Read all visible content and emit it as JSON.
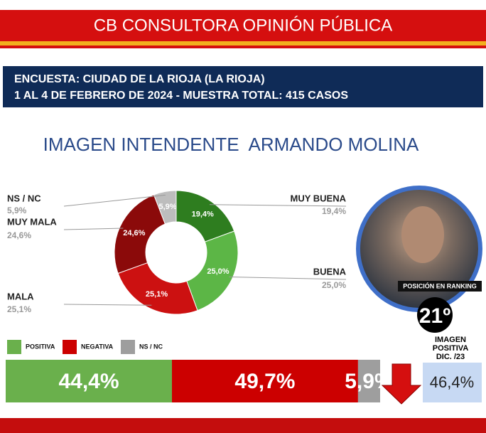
{
  "header": {
    "brand": "CB CONSULTORA OPINIÓN PÚBLICA",
    "survey_line1": "ENCUESTA: CIUDAD DE LA RIOJA (LA RIOJA)",
    "survey_line2": "1 AL 4 DE FEBRERO DE 2024 - MUESTRA TOTAL: 415 CASOS"
  },
  "ranking": {
    "label": "POSICIÓN EN RANKING",
    "position": "21º",
    "previous_label": [
      "IMAGEN",
      "POSITIVA",
      "DIC. /23"
    ],
    "previous_value": "46,4%"
  },
  "chart_data": [
    {
      "type": "donut",
      "title": "IMAGEN INTENDENTE  ARMANDO MOLINA",
      "categories": [
        "MUY BUENA",
        "BUENA",
        "MALA",
        "MUY MALA",
        "NS / NC"
      ],
      "values": [
        19.4,
        25.0,
        25.1,
        24.6,
        5.9
      ],
      "value_labels": [
        "19,4%",
        "25,0%",
        "25,1%",
        "24,6%",
        "5,9%"
      ],
      "colors": [
        "#2e7d1f",
        "#5cb646",
        "#cc1111",
        "#8b0a0a",
        "#bdbdbd"
      ]
    },
    {
      "type": "stacked-bar",
      "series": [
        {
          "name": "POSITIVA",
          "color": "#6ab04c",
          "values": [
            44.4
          ],
          "value_labels": [
            "44,4%"
          ]
        },
        {
          "name": "NEGATIVA",
          "color": "#cc0000",
          "values": [
            49.7
          ],
          "value_labels": [
            "49,7%"
          ]
        },
        {
          "name": "NS / NC",
          "color": "#9e9e9e",
          "values": [
            5.9
          ],
          "value_labels": [
            "5,9%"
          ]
        }
      ]
    }
  ]
}
